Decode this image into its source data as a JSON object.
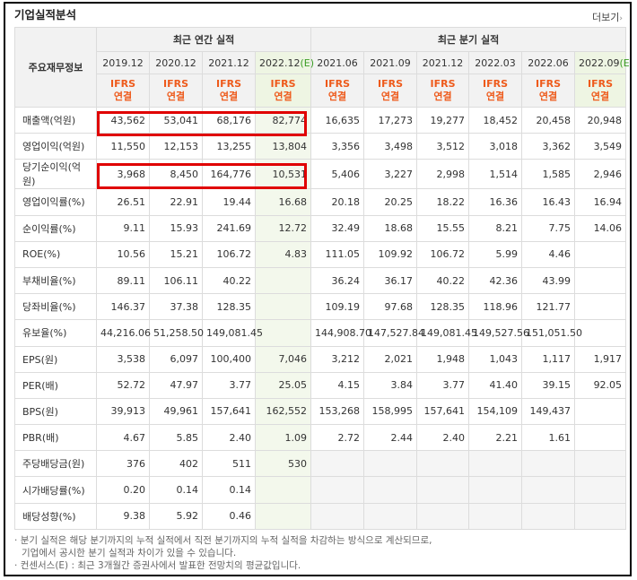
{
  "title": "기업실적분석",
  "more_label": "더보기",
  "header": {
    "row_label": "주요재무정보",
    "annual_group": "최근 연간 실적",
    "quarter_group": "최근 분기 실적",
    "annual_periods": [
      {
        "label": "2019.12",
        "est": ""
      },
      {
        "label": "2020.12",
        "est": ""
      },
      {
        "label": "2021.12",
        "est": ""
      },
      {
        "label": "2022.12",
        "est": "(E)"
      }
    ],
    "quarter_periods": [
      {
        "label": "2021.06",
        "est": ""
      },
      {
        "label": "2021.09",
        "est": ""
      },
      {
        "label": "2021.12",
        "est": ""
      },
      {
        "label": "2022.03",
        "est": ""
      },
      {
        "label": "2022.06",
        "est": ""
      },
      {
        "label": "2022.09",
        "est": "(E)"
      }
    ],
    "ifrs_label": "IFRS",
    "consolidated_label": "연결"
  },
  "rows": [
    {
      "label": "매출액(억원)",
      "values": [
        "43,562",
        "53,041",
        "68,176",
        "82,774",
        "16,635",
        "17,273",
        "19,277",
        "18,452",
        "20,458",
        "20,948"
      ]
    },
    {
      "label": "영업이익(억원)",
      "values": [
        "11,550",
        "12,153",
        "13,255",
        "13,804",
        "3,356",
        "3,498",
        "3,512",
        "3,018",
        "3,362",
        "3,549"
      ]
    },
    {
      "label": "당기순이익(억원)",
      "values": [
        "3,968",
        "8,450",
        "164,776",
        "10,531",
        "5,406",
        "3,227",
        "2,998",
        "1,514",
        "1,585",
        "2,946"
      ]
    },
    {
      "label": "영업이익률(%)",
      "values": [
        "26.51",
        "22.91",
        "19.44",
        "16.68",
        "20.18",
        "20.25",
        "18.22",
        "16.36",
        "16.43",
        "16.94"
      ]
    },
    {
      "label": "순이익률(%)",
      "values": [
        "9.11",
        "15.93",
        "241.69",
        "12.72",
        "32.49",
        "18.68",
        "15.55",
        "8.21",
        "7.75",
        "14.06"
      ]
    },
    {
      "label": "ROE(%)",
      "values": [
        "10.56",
        "15.21",
        "106.72",
        "4.83",
        "111.05",
        "109.92",
        "106.72",
        "5.99",
        "4.46",
        ""
      ]
    },
    {
      "label": "부채비율(%)",
      "values": [
        "89.11",
        "106.11",
        "40.22",
        "",
        "36.24",
        "36.17",
        "40.22",
        "42.36",
        "43.99",
        ""
      ]
    },
    {
      "label": "당좌비율(%)",
      "values": [
        "146.37",
        "37.38",
        "128.35",
        "",
        "109.19",
        "97.68",
        "128.35",
        "118.96",
        "121.77",
        ""
      ]
    },
    {
      "label": "유보율(%)",
      "values": [
        "44,216.06",
        "51,258.50",
        "149,081.45",
        "",
        "144,908.70",
        "147,527.84",
        "149,081.45",
        "149,527.56",
        "151,051.50",
        ""
      ]
    },
    {
      "label": "EPS(원)",
      "values": [
        "3,538",
        "6,097",
        "100,400",
        "7,046",
        "3,212",
        "2,021",
        "1,948",
        "1,043",
        "1,117",
        "1,917"
      ]
    },
    {
      "label": "PER(배)",
      "values": [
        "52.72",
        "47.97",
        "3.77",
        "25.05",
        "4.15",
        "3.84",
        "3.77",
        "41.40",
        "39.15",
        "92.05"
      ]
    },
    {
      "label": "BPS(원)",
      "values": [
        "39,913",
        "49,961",
        "157,641",
        "162,552",
        "153,268",
        "158,995",
        "157,641",
        "154,109",
        "149,437",
        ""
      ]
    },
    {
      "label": "PBR(배)",
      "values": [
        "4.67",
        "5.85",
        "2.40",
        "1.09",
        "2.72",
        "2.44",
        "2.40",
        "2.21",
        "1.61",
        ""
      ]
    },
    {
      "label": "주당배당금(원)",
      "values": [
        "376",
        "402",
        "511",
        "530",
        "",
        "",
        "",
        "",
        "",
        ""
      ]
    },
    {
      "label": "시가배당률(%)",
      "values": [
        "0.20",
        "0.14",
        "0.14",
        "",
        "",
        "",
        "",
        "",
        "",
        ""
      ]
    },
    {
      "label": "배당성향(%)",
      "values": [
        "9.38",
        "5.92",
        "0.46",
        "",
        "",
        "",
        "",
        "",
        "",
        ""
      ]
    }
  ],
  "notes": [
    "분기 실적은 해당 분기까지의 누적 실적에서 직전 분기까지의 누적 실적을 차감하는 방식으로 계산되므로,",
    "기업에서 공시한 분기 실적과 차이가 있을 수 있습니다.",
    "컨센서스(E) : 최근 3개월간 증권사에서 발표한 전망치의 평균값입니다."
  ]
}
